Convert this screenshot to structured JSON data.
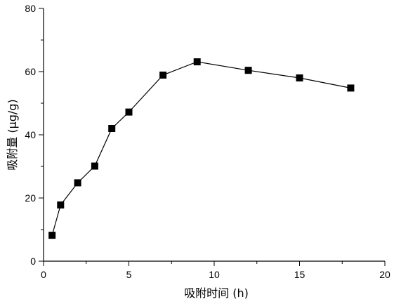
{
  "chart_data": {
    "type": "line",
    "xlabel": "吸附时间 (h)",
    "ylabel": "吸附量 (μg/g)",
    "xlim": [
      0,
      20
    ],
    "ylim": [
      0,
      80
    ],
    "xticks": [
      0,
      5,
      10,
      15,
      20
    ],
    "yticks": [
      0,
      20,
      40,
      60,
      80
    ],
    "x_tick_labels": [
      "0",
      "5",
      "10",
      "15",
      "20"
    ],
    "y_tick_labels": [
      "0",
      "20",
      "40",
      "60",
      "80"
    ],
    "grid": false,
    "marker": "square",
    "colors": {
      "line": "#000000",
      "marker": "#000000"
    },
    "series": [
      {
        "x": [
          0.5,
          1,
          2,
          3,
          4,
          5,
          7,
          9,
          12,
          15,
          18
        ],
        "y": [
          8.2,
          17.8,
          24.8,
          30.1,
          42.0,
          47.2,
          58.9,
          63.1,
          60.4,
          58.0,
          54.8
        ]
      }
    ]
  }
}
